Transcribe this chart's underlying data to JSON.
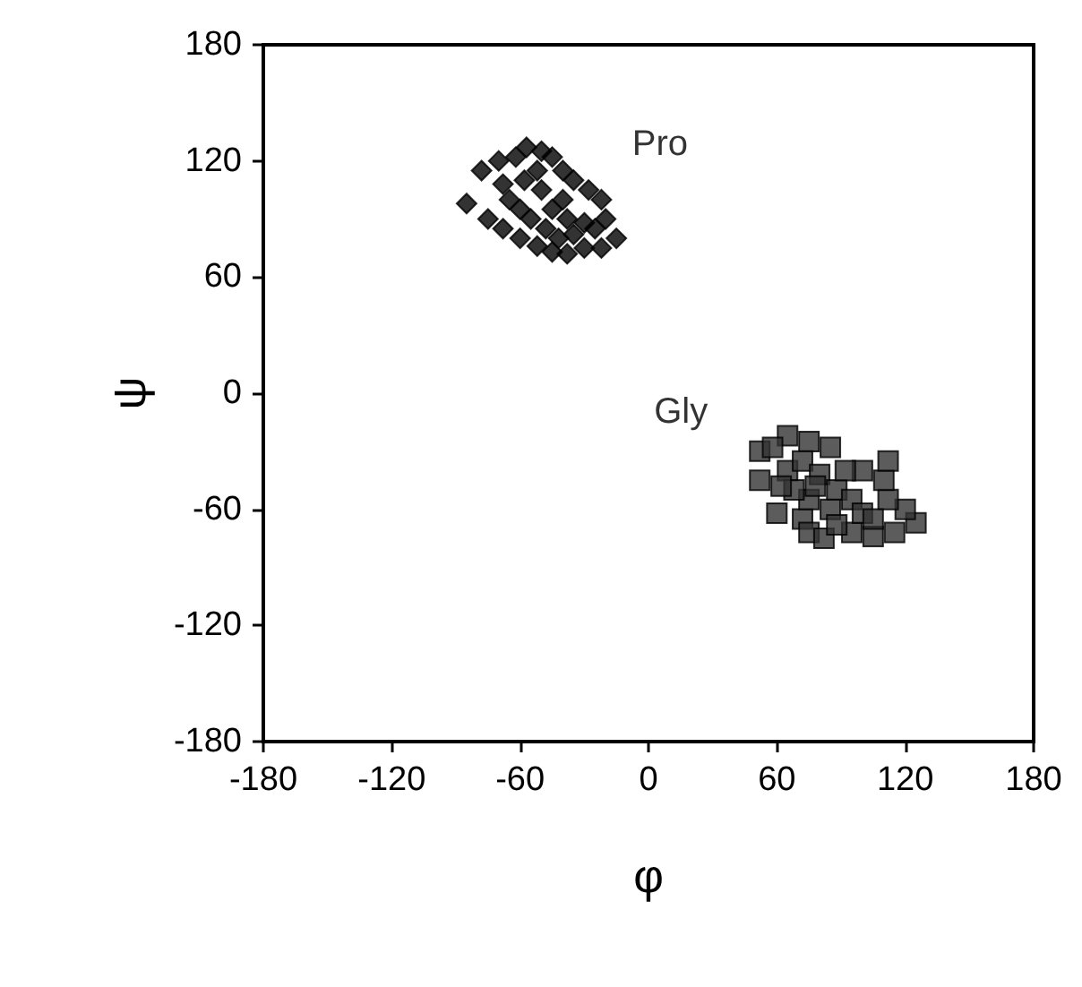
{
  "chart_data": {
    "type": "scatter",
    "xlabel": "φ",
    "ylabel": "ψ",
    "xlim": [
      -180,
      180
    ],
    "xticks": [
      -180,
      -120,
      -60,
      0,
      60,
      120,
      180
    ],
    "ylim": [
      -180,
      180
    ],
    "yticks": [
      -180,
      -120,
      -60,
      0,
      60,
      120,
      180
    ],
    "grid": false,
    "legend": false,
    "series": [
      {
        "name": "Pro",
        "color": "#000000",
        "marker": "diamond",
        "x": [
          -85,
          -78,
          -70,
          -62,
          -57,
          -50,
          -45,
          -40,
          -35,
          -28,
          -22,
          -20,
          -15,
          -22,
          -30,
          -38,
          -45,
          -52,
          -60,
          -68,
          -75,
          -65,
          -58,
          -50,
          -45,
          -38,
          -30,
          -55,
          -60,
          -48,
          -40,
          -68,
          -52,
          -35,
          -25,
          -42
        ],
        "values": [
          98,
          115,
          120,
          122,
          127,
          125,
          122,
          115,
          110,
          105,
          100,
          90,
          80,
          75,
          75,
          72,
          73,
          76,
          80,
          85,
          90,
          100,
          110,
          105,
          95,
          90,
          88,
          90,
          95,
          85,
          100,
          108,
          115,
          82,
          85,
          80
        ]
      },
      {
        "name": "Gly",
        "color": "#333333",
        "marker": "square",
        "x": [
          52,
          52,
          60,
          72,
          75,
          82,
          95,
          105,
          115,
          125,
          120,
          112,
          110,
          112,
          100,
          85,
          75,
          65,
          58,
          65,
          72,
          80,
          88,
          95,
          100,
          85,
          75,
          68,
          92,
          105,
          78,
          62,
          88
        ],
        "values": [
          -30,
          -45,
          -62,
          -65,
          -72,
          -75,
          -72,
          -74,
          -72,
          -67,
          -60,
          -55,
          -45,
          -35,
          -40,
          -28,
          -25,
          -22,
          -28,
          -40,
          -35,
          -42,
          -50,
          -55,
          -62,
          -60,
          -55,
          -50,
          -40,
          -65,
          -48,
          -48,
          -68
        ]
      }
    ]
  }
}
